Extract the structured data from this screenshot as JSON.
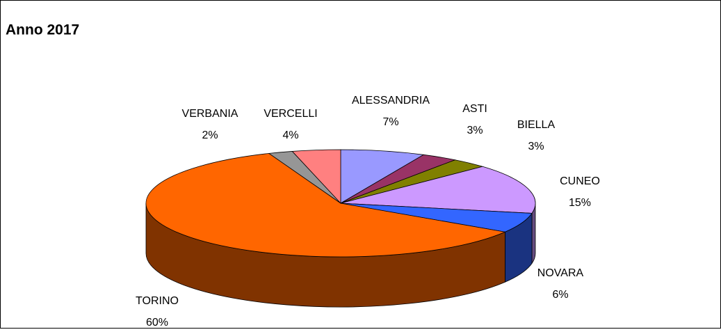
{
  "chart_data": {
    "type": "pie3d",
    "title": "Anno 2017",
    "categories": [
      "ALESSANDRIA",
      "ASTI",
      "BIELLA",
      "CUNEO",
      "NOVARA",
      "TORINO",
      "VERBANIA",
      "VERCELLI"
    ],
    "values": [
      7,
      3,
      3,
      15,
      6,
      60,
      2,
      4
    ],
    "value_labels": [
      "7%",
      "3%",
      "3%",
      "15%",
      "6%",
      "60%",
      "2%",
      "4%"
    ],
    "colors": [
      "#9999ff",
      "#993366",
      "#808000",
      "#cc99ff",
      "#3366ff",
      "#ff6600",
      "#969696",
      "#ff8080"
    ]
  }
}
